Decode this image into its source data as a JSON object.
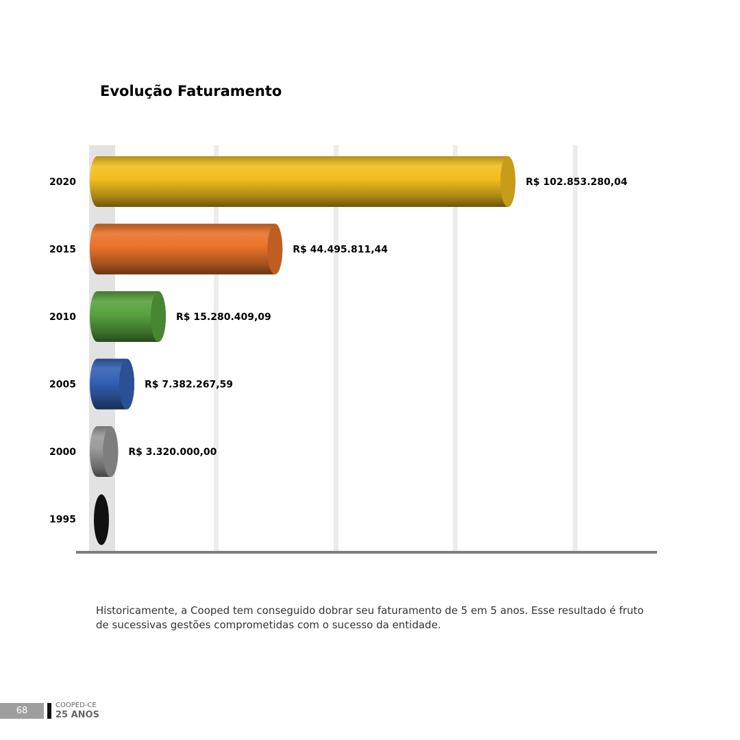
{
  "chart_data": {
    "type": "bar",
    "orientation": "horizontal",
    "title": "Evolução Faturamento",
    "categories": [
      "2020",
      "2015",
      "2010",
      "2005",
      "2000",
      "1995"
    ],
    "values": [
      102853280.04,
      44495811.44,
      15280409.09,
      7382267.59,
      3320000.0,
      0
    ],
    "value_labels": [
      "R$ 102.853.280,04",
      "R$ 44.495.811,44",
      "R$ 15.280.409,09",
      "R$ 7.382.267,59",
      "R$ 3.320.000,00",
      ""
    ],
    "colors": [
      "#f2be1e",
      "#e9732a",
      "#57a33e",
      "#3461b5",
      "#9a9a9a",
      "#111111"
    ],
    "xlim": [
      0,
      150000000
    ],
    "grid": true,
    "legend": "none"
  },
  "caption": "Historicamente, a Cooped tem conseguido dobrar seu faturamento de 5 em 5 anos. Esse resultado é fruto de sucessivas gestões comprometidas com o sucesso da entidade.",
  "footer": {
    "page_number": "68",
    "org": "COOPED-CE",
    "anniversary": "25 ANOS"
  }
}
